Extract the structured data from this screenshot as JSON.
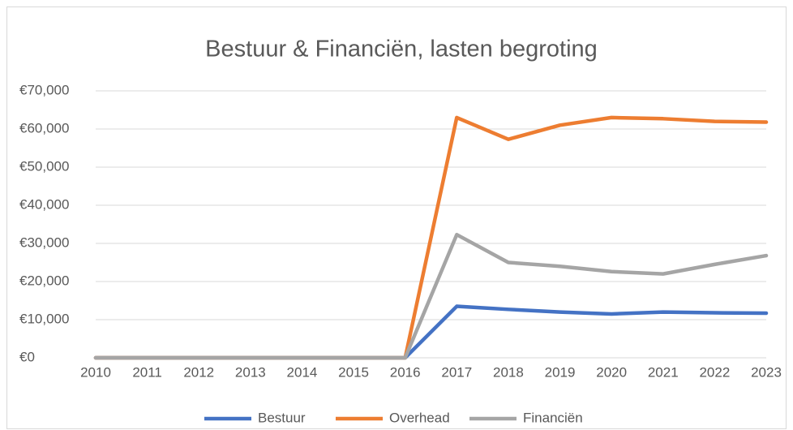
{
  "chart_data": {
    "type": "line",
    "title": "Bestuur & Financiën, lasten begroting",
    "categories": [
      "2010",
      "2011",
      "2012",
      "2013",
      "2014",
      "2015",
      "2016",
      "2017",
      "2018",
      "2019",
      "2020",
      "2021",
      "2022",
      "2023"
    ],
    "series": [
      {
        "name": "Bestuur",
        "color": "#4472c4",
        "values": [
          0,
          0,
          0,
          0,
          0,
          0,
          0,
          13500,
          12700,
          12000,
          11500,
          12000,
          11800,
          11700
        ]
      },
      {
        "name": "Overhead",
        "color": "#ed7d31",
        "values": [
          0,
          0,
          0,
          0,
          0,
          0,
          0,
          63000,
          57300,
          61000,
          63000,
          62700,
          62000,
          61800
        ]
      },
      {
        "name": "Financiën",
        "color": "#a5a5a5",
        "values": [
          0,
          0,
          0,
          0,
          0,
          0,
          0,
          32300,
          25000,
          24000,
          22600,
          22000,
          24500,
          26800
        ]
      }
    ],
    "ylim": [
      0,
      70000
    ],
    "yticks": [
      {
        "value": 0,
        "label": "€0"
      },
      {
        "value": 10000,
        "label": "€10,000"
      },
      {
        "value": 20000,
        "label": "€20,000"
      },
      {
        "value": 30000,
        "label": "€30,000"
      },
      {
        "value": 40000,
        "label": "€40,000"
      },
      {
        "value": 50000,
        "label": "€50,000"
      },
      {
        "value": 60000,
        "label": "€60,000"
      },
      {
        "value": 70000,
        "label": "€70,000"
      }
    ],
    "grid": true,
    "legend": "bottom"
  }
}
